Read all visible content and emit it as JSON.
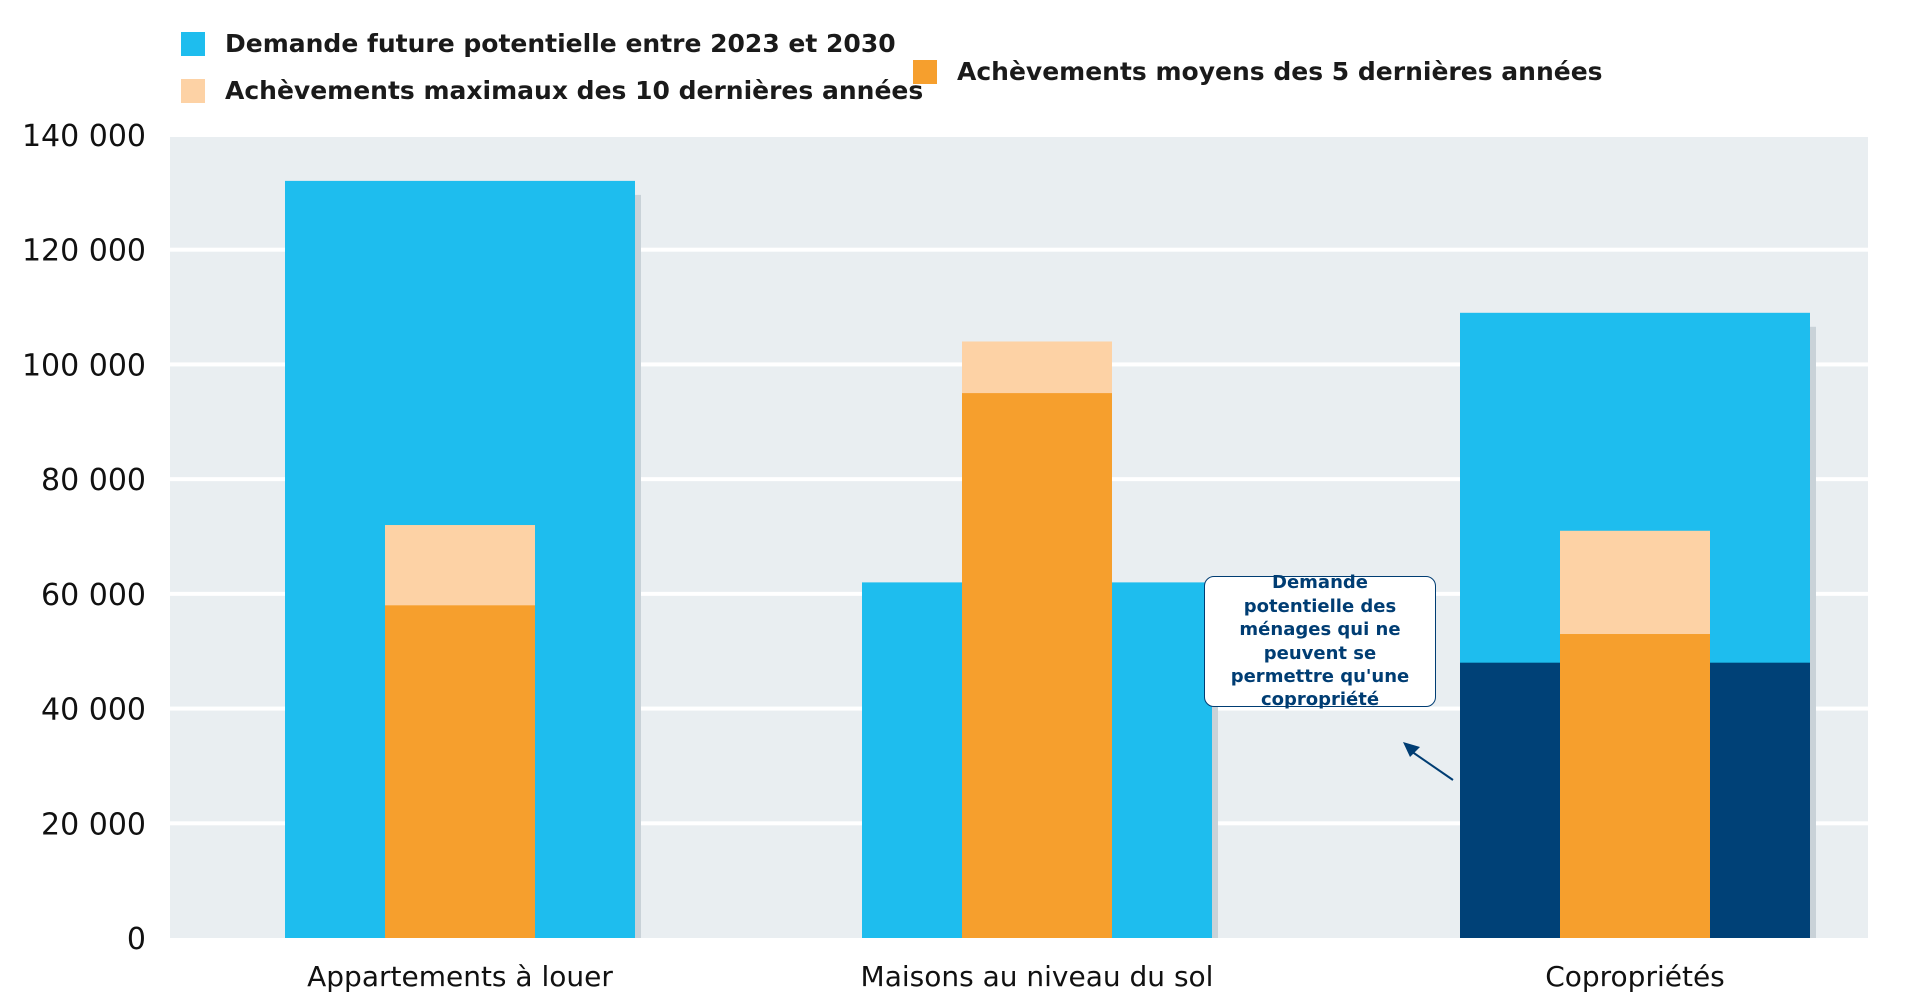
{
  "legend": {
    "demand": "Demande future potentielle entre 2023 et 2030",
    "max_completions": "Achèvements maximaux des 10 dernières années",
    "avg_completions": "Achèvements moyens des 5 dernières années"
  },
  "colors": {
    "demand": "#1ebdee",
    "max_completions": "#fdd2a5",
    "avg_completions": "#f69f2d",
    "condo_only": "#004177",
    "plot_bg": "#e9eef1",
    "grid": "#ffffff"
  },
  "annotation": {
    "text": "Demande potentielle des ménages qui ne peuvent se permettre qu'une copropriété"
  },
  "chart_data": {
    "type": "bar",
    "categories": [
      "Appartements à louer",
      "Maisons au niveau du sol",
      "Copropriétés"
    ],
    "series": [
      {
        "name": "Demande future potentielle entre 2023 et 2030",
        "values": [
          132000,
          62000,
          109000
        ]
      },
      {
        "name": "Achèvements maximaux des 10 dernières années",
        "values": [
          72000,
          104000,
          71000
        ]
      },
      {
        "name": "Achèvements moyens des 5 dernières années",
        "values": [
          58000,
          95000,
          53000
        ]
      }
    ],
    "condo_only_demand": 48000,
    "yticks": [
      "0",
      "20 000",
      "40 000",
      "60 000",
      "80 000",
      "100 000",
      "120 000",
      "140 000"
    ],
    "ylim": [
      0,
      140000
    ],
    "grid": true,
    "legend_position": "top-left"
  }
}
